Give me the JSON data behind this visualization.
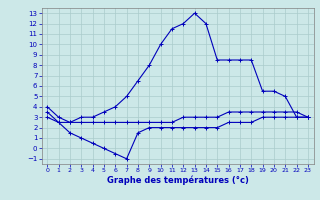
{
  "xlabel": "Graphe des températures (°c)",
  "xlim": [
    -0.5,
    23.5
  ],
  "ylim": [
    -1.5,
    13.5
  ],
  "xticks": [
    0,
    1,
    2,
    3,
    4,
    5,
    6,
    7,
    8,
    9,
    10,
    11,
    12,
    13,
    14,
    15,
    16,
    17,
    18,
    19,
    20,
    21,
    22,
    23
  ],
  "yticks": [
    -1,
    0,
    1,
    2,
    3,
    4,
    5,
    6,
    7,
    8,
    9,
    10,
    11,
    12,
    13
  ],
  "background_color": "#cce8e8",
  "grid_color": "#aacccc",
  "line_color": "#0000bb",
  "line1_x": [
    0,
    1,
    2,
    3,
    4,
    5,
    6,
    7,
    8,
    9,
    10,
    11,
    12,
    13,
    14,
    15,
    16,
    17,
    18,
    19,
    20,
    21,
    22,
    23
  ],
  "line1_y": [
    4.0,
    3.0,
    2.5,
    3.0,
    3.0,
    3.5,
    4.0,
    5.0,
    6.5,
    8.0,
    10.0,
    11.5,
    12.0,
    13.0,
    12.0,
    8.5,
    8.5,
    8.5,
    8.5,
    5.5,
    5.5,
    5.0,
    3.0,
    3.0
  ],
  "line2_x": [
    0,
    1,
    2,
    3,
    4,
    5,
    6,
    7,
    8,
    9,
    10,
    11,
    12,
    13,
    14,
    15,
    16,
    17,
    18,
    19,
    20,
    21,
    22,
    23
  ],
  "line2_y": [
    3.5,
    2.5,
    2.5,
    2.5,
    2.5,
    2.5,
    2.5,
    2.5,
    2.5,
    2.5,
    2.5,
    2.5,
    3.0,
    3.0,
    3.0,
    3.0,
    3.5,
    3.5,
    3.5,
    3.5,
    3.5,
    3.5,
    3.5,
    3.0
  ],
  "line3_x": [
    0,
    1,
    2,
    3,
    4,
    5,
    6,
    7,
    8,
    9,
    10,
    11,
    12,
    13,
    14,
    15,
    16,
    17,
    18,
    19,
    20,
    21,
    22,
    23
  ],
  "line3_y": [
    3.0,
    2.5,
    1.5,
    1.0,
    0.5,
    0.0,
    -0.5,
    -1.0,
    1.5,
    2.0,
    2.0,
    2.0,
    2.0,
    2.0,
    2.0,
    2.0,
    2.5,
    2.5,
    2.5,
    3.0,
    3.0,
    3.0,
    3.0,
    3.0
  ]
}
